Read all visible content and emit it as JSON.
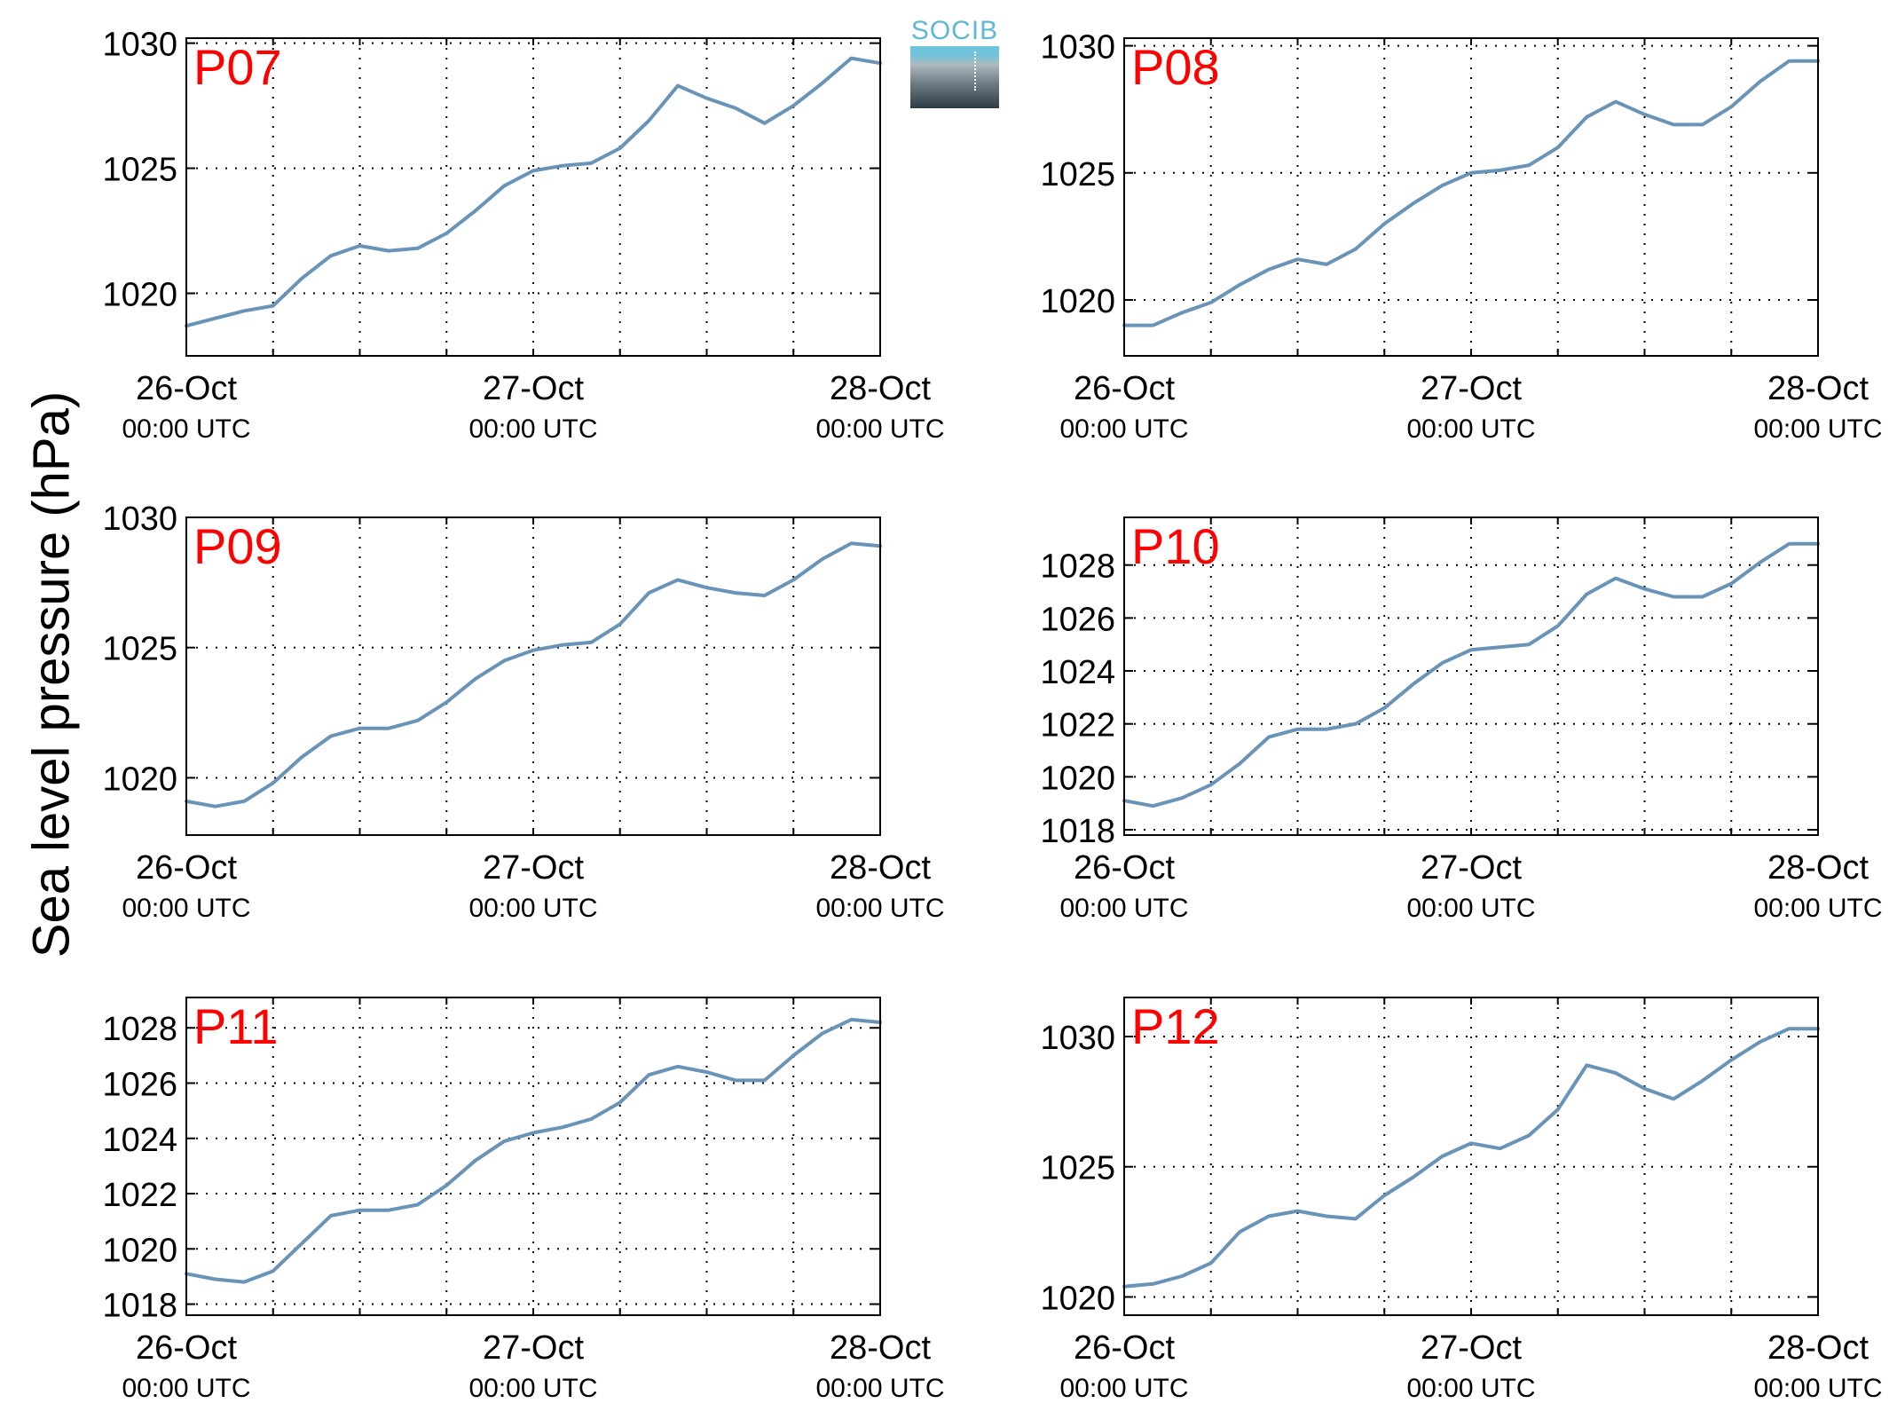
{
  "figure": {
    "ylabel": "Sea level pressure (hPa)",
    "logo_text": "SOCIB",
    "colors": {
      "line": "#6a93b8",
      "panel_label": "#ff0000",
      "axis": "#000000",
      "grid": "#000000"
    }
  },
  "chart_data": [
    {
      "type": "line",
      "title": "P07",
      "x_start": "26-Oct 00:00 UTC",
      "x_end": "28-Oct 00:00 UTC",
      "xticks": [
        {
          "top": "26-Oct",
          "bottom": "00:00 UTC"
        },
        {
          "top": "27-Oct",
          "bottom": "00:00 UTC"
        },
        {
          "top": "28-Oct",
          "bottom": "00:00 UTC"
        }
      ],
      "ylim": [
        1017.5,
        1030.2
      ],
      "yticks": [
        1020,
        1025,
        1030
      ],
      "grid": true,
      "series": [
        {
          "x_hours": [
            0,
            2,
            4,
            6,
            8,
            10,
            12,
            14,
            16,
            18,
            20,
            22,
            24,
            26,
            28,
            30,
            32,
            34,
            36,
            38,
            40,
            42,
            44,
            46,
            48
          ],
          "values": [
            1018.7,
            1019.0,
            1019.3,
            1019.5,
            1020.6,
            1021.5,
            1021.9,
            1021.7,
            1021.8,
            1022.4,
            1023.3,
            1024.3,
            1024.9,
            1025.1,
            1025.2,
            1025.8,
            1026.9,
            1028.3,
            1027.8,
            1027.4,
            1026.8,
            1027.5,
            1028.4,
            1029.4,
            1029.2
          ]
        }
      ]
    },
    {
      "type": "line",
      "title": "P08",
      "x_start": "26-Oct 00:00 UTC",
      "x_end": "28-Oct 00:00 UTC",
      "xticks": [
        {
          "top": "26-Oct",
          "bottom": "00:00 UTC"
        },
        {
          "top": "27-Oct",
          "bottom": "00:00 UTC"
        },
        {
          "top": "28-Oct",
          "bottom": "00:00 UTC"
        }
      ],
      "ylim": [
        1017.8,
        1030.3
      ],
      "yticks": [
        1020,
        1025,
        1030
      ],
      "grid": true,
      "series": [
        {
          "x_hours": [
            0,
            2,
            4,
            6,
            8,
            10,
            12,
            14,
            16,
            18,
            20,
            22,
            24,
            26,
            28,
            30,
            32,
            34,
            36,
            38,
            40,
            42,
            44,
            46,
            48
          ],
          "values": [
            1019.0,
            1019.0,
            1019.5,
            1019.9,
            1020.6,
            1021.2,
            1021.6,
            1021.4,
            1022.0,
            1023.0,
            1023.8,
            1024.5,
            1025.0,
            1025.1,
            1025.3,
            1026.0,
            1027.2,
            1027.8,
            1027.3,
            1026.9,
            1026.9,
            1027.6,
            1028.6,
            1029.4,
            1029.4
          ]
        }
      ]
    },
    {
      "type": "line",
      "title": "P09",
      "x_start": "26-Oct 00:00 UTC",
      "x_end": "28-Oct 00:00 UTC",
      "xticks": [
        {
          "top": "26-Oct",
          "bottom": "00:00 UTC"
        },
        {
          "top": "27-Oct",
          "bottom": "00:00 UTC"
        },
        {
          "top": "28-Oct",
          "bottom": "00:00 UTC"
        }
      ],
      "ylim": [
        1017.8,
        1030.0
      ],
      "yticks": [
        1020,
        1025,
        1030
      ],
      "grid": true,
      "series": [
        {
          "x_hours": [
            0,
            2,
            4,
            6,
            8,
            10,
            12,
            14,
            16,
            18,
            20,
            22,
            24,
            26,
            28,
            30,
            32,
            34,
            36,
            38,
            40,
            42,
            44,
            46,
            48
          ],
          "values": [
            1019.1,
            1018.9,
            1019.1,
            1019.8,
            1020.8,
            1021.6,
            1021.9,
            1021.9,
            1022.2,
            1022.9,
            1023.8,
            1024.5,
            1024.9,
            1025.1,
            1025.2,
            1025.9,
            1027.1,
            1027.6,
            1027.3,
            1027.1,
            1027.0,
            1027.6,
            1028.4,
            1029.0,
            1028.9
          ]
        }
      ]
    },
    {
      "type": "line",
      "title": "P10",
      "x_start": "26-Oct 00:00 UTC",
      "x_end": "28-Oct 00:00 UTC",
      "xticks": [
        {
          "top": "26-Oct",
          "bottom": "00:00 UTC"
        },
        {
          "top": "27-Oct",
          "bottom": "00:00 UTC"
        },
        {
          "top": "28-Oct",
          "bottom": "00:00 UTC"
        }
      ],
      "ylim": [
        1017.8,
        1029.8
      ],
      "yticks": [
        1018,
        1020,
        1022,
        1024,
        1026,
        1028
      ],
      "grid": true,
      "series": [
        {
          "x_hours": [
            0,
            2,
            4,
            6,
            8,
            10,
            12,
            14,
            16,
            18,
            20,
            22,
            24,
            26,
            28,
            30,
            32,
            34,
            36,
            38,
            40,
            42,
            44,
            46,
            48
          ],
          "values": [
            1019.1,
            1018.9,
            1019.2,
            1019.7,
            1020.5,
            1021.5,
            1021.8,
            1021.8,
            1022.0,
            1022.6,
            1023.5,
            1024.3,
            1024.8,
            1024.9,
            1025.0,
            1025.7,
            1026.9,
            1027.5,
            1027.1,
            1026.8,
            1026.8,
            1027.3,
            1028.1,
            1028.8,
            1028.8
          ]
        }
      ]
    },
    {
      "type": "line",
      "title": "P11",
      "x_start": "26-Oct 00:00 UTC",
      "x_end": "28-Oct 00:00 UTC",
      "xticks": [
        {
          "top": "26-Oct",
          "bottom": "00:00 UTC"
        },
        {
          "top": "27-Oct",
          "bottom": "00:00 UTC"
        },
        {
          "top": "28-Oct",
          "bottom": "00:00 UTC"
        }
      ],
      "ylim": [
        1017.6,
        1029.1
      ],
      "yticks": [
        1018,
        1020,
        1022,
        1024,
        1026,
        1028
      ],
      "grid": true,
      "series": [
        {
          "x_hours": [
            0,
            2,
            4,
            6,
            8,
            10,
            12,
            14,
            16,
            18,
            20,
            22,
            24,
            26,
            28,
            30,
            32,
            34,
            36,
            38,
            40,
            42,
            44,
            46,
            48
          ],
          "values": [
            1019.1,
            1018.9,
            1018.8,
            1019.2,
            1020.2,
            1021.2,
            1021.4,
            1021.4,
            1021.6,
            1022.3,
            1023.2,
            1023.9,
            1024.2,
            1024.4,
            1024.7,
            1025.3,
            1026.3,
            1026.6,
            1026.4,
            1026.1,
            1026.1,
            1027.0,
            1027.8,
            1028.3,
            1028.2
          ]
        }
      ]
    },
    {
      "type": "line",
      "title": "P12",
      "x_start": "26-Oct 00:00 UTC",
      "x_end": "28-Oct 00:00 UTC",
      "xticks": [
        {
          "top": "26-Oct",
          "bottom": "00:00 UTC"
        },
        {
          "top": "27-Oct",
          "bottom": "00:00 UTC"
        },
        {
          "top": "28-Oct",
          "bottom": "00:00 UTC"
        }
      ],
      "ylim": [
        1019.3,
        1031.5
      ],
      "yticks": [
        1020,
        1025,
        1030
      ],
      "grid": true,
      "series": [
        {
          "x_hours": [
            0,
            2,
            4,
            6,
            8,
            10,
            12,
            14,
            16,
            18,
            20,
            22,
            24,
            26,
            28,
            30,
            32,
            34,
            36,
            38,
            40,
            42,
            44,
            46,
            48
          ],
          "values": [
            1020.4,
            1020.5,
            1020.8,
            1021.3,
            1022.5,
            1023.1,
            1023.3,
            1023.1,
            1023.0,
            1023.9,
            1024.6,
            1025.4,
            1025.9,
            1025.7,
            1026.2,
            1027.2,
            1028.9,
            1028.6,
            1028.0,
            1027.6,
            1028.3,
            1029.1,
            1029.8,
            1030.3,
            1030.3
          ]
        }
      ]
    }
  ]
}
